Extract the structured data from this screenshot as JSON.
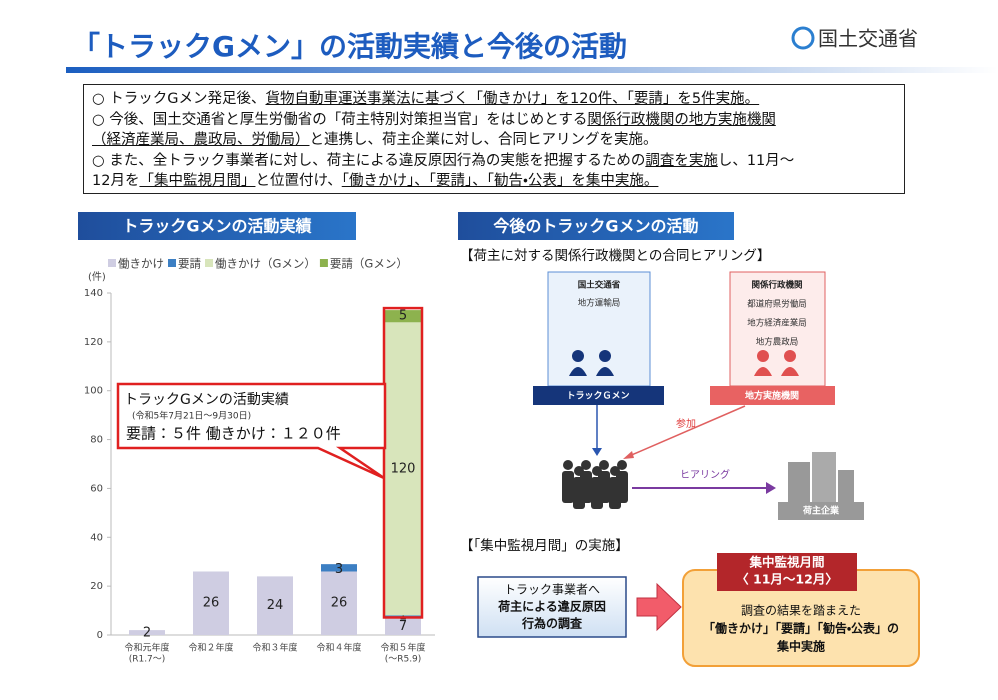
{
  "header": {
    "title": "「トラックGメン」の活動実績と今後の活動",
    "logo": "国土交通省"
  },
  "summary": {
    "lines": [
      {
        "segments": [
          {
            "text": "○ トラックGメン発足後、"
          },
          {
            "text": "貨物自動車運送事業法に基づく「働きかけ」を120件、「要請」を5件実施。",
            "underline": true
          }
        ]
      },
      {
        "segments": [
          {
            "text": "○ 今後、国土交通省と厚生労働省の「荷主特別対策担当官」をはじめとする"
          },
          {
            "text": "関係行政機関の地方実施機関",
            "underline": true
          }
        ]
      },
      {
        "segments": [
          {
            "text": "（経済産業局、農政局、労働局）",
            "underline": true
          },
          {
            "text": "と連携し、荷主企業に対し、合同ヒアリングを実施。"
          }
        ]
      },
      {
        "segments": [
          {
            "text": "○ また、全トラック事業者に対し、荷主による違反原因行為の実態を把握するための"
          },
          {
            "text": "調査を実施",
            "underline": true
          },
          {
            "text": "し、11月～"
          }
        ]
      },
      {
        "segments": [
          {
            "text": "12月を"
          },
          {
            "text": "「集中監視月間」",
            "underline": true
          },
          {
            "text": "と位置付け、"
          },
          {
            "text": "「働きかけ」、「要請」、「勧告・公表」を集中実施。",
            "underline": true
          }
        ]
      }
    ]
  },
  "left_section": {
    "title": "トラックGメンの活動実績"
  },
  "chart_data": {
    "type": "stacked_bar",
    "y_label": "(件)",
    "categories": [
      [
        "令和元年度",
        "(R1.7～)"
      ],
      [
        "令和２年度"
      ],
      [
        "令和３年度"
      ],
      [
        "令和４年度"
      ],
      [
        "令和５年度",
        "(～R5.9)"
      ]
    ],
    "series": [
      {
        "name": "働きかけ",
        "color": "#cfcde2",
        "values": [
          2,
          26,
          24,
          26,
          7
        ]
      },
      {
        "name": "要請",
        "color": "#3c7fc3",
        "values": [
          null,
          null,
          null,
          3,
          1
        ]
      },
      {
        "name": "働きかけ（Gメン）",
        "color": "#d8e5bb",
        "values": [
          null,
          null,
          null,
          null,
          120
        ]
      },
      {
        "name": "要請（Gメン）",
        "color": "#8db24e",
        "values": [
          null,
          null,
          null,
          null,
          5
        ]
      }
    ],
    "ylim": [
      0,
      140
    ],
    "yticks": [
      0,
      20,
      40,
      60,
      80,
      100,
      120,
      140
    ],
    "grid": false,
    "annotation": {
      "title": "トラックGメンの活動実績",
      "period": "(令和5年7月21日～9月30日)",
      "text": "要請：５件  働きかけ：１２０件"
    }
  },
  "right_section": {
    "title": "今後のトラックGメンの活動",
    "hearing": {
      "heading": "【荷主に対する関係行政機関との合同ヒアリング】",
      "left_box": {
        "title": "国土交通省",
        "items": [
          "地方運輸局"
        ],
        "label": "トラックＧメン"
      },
      "right_box": {
        "title": "関係行政機関",
        "items": [
          "都道府県労働局",
          "地方経済産業局",
          "地方農政局"
        ],
        "label": "地方実施機関"
      },
      "join_label": "参加",
      "hearing_label": "ヒアリング",
      "shipper_label": "荷主企業"
    },
    "campaign": {
      "heading": "【「集中監視月間」の実施】",
      "survey": [
        "トラック事業者へ",
        "荷主による違反原因",
        "行為の調査"
      ],
      "banner": [
        "集中監視月間",
        "〈 11月～12月〉"
      ],
      "result": [
        "調査の結果を踏まえた",
        "「働きかけ」「要請」「勧告・公表」の",
        "集中実施"
      ]
    }
  }
}
